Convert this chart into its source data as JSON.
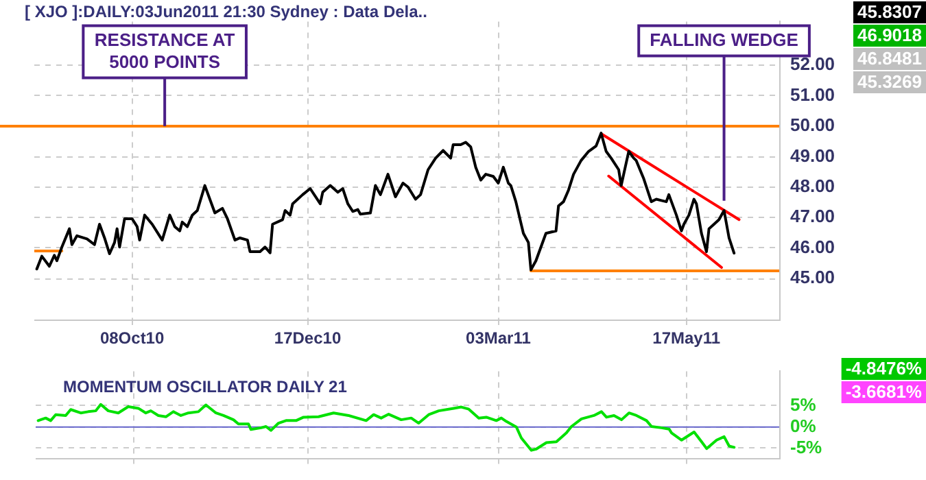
{
  "chart_data": [
    {
      "type": "line",
      "title": "[ XJO ]:DAILY:03Jun2011 21:30 Sydney : Data Dela..",
      "grid": true,
      "xlim": [
        "2010-08-30",
        "2011-06-23"
      ],
      "xticks": [
        {
          "value": "2010-10-08",
          "label": "08Oct10"
        },
        {
          "value": "2010-12-17",
          "label": "17Dec10"
        },
        {
          "value": "2011-03-03",
          "label": "03Mar11"
        },
        {
          "value": "2011-05-17",
          "label": "17May11"
        }
      ],
      "ylim": [
        43.65,
        53.43
      ],
      "yticks": [
        {
          "value": 45,
          "label": "45.00"
        },
        {
          "value": 46,
          "label": "46.00"
        },
        {
          "value": 47,
          "label": "47.00"
        },
        {
          "value": 48,
          "label": "48.00"
        },
        {
          "value": 49,
          "label": "49.00"
        },
        {
          "value": 50,
          "label": "50.00"
        },
        {
          "value": 51,
          "label": "51.00"
        },
        {
          "value": 52,
          "label": "52.00"
        }
      ],
      "ref_lines": [
        {
          "axis": "y",
          "value": 50,
          "color": "#ff8000"
        }
      ],
      "annotations": [
        "45.8307",
        "46.9018",
        "46.8481",
        "45.3269",
        {
          "text": "RESISTANCE AT 5000 POINTS",
          "x": "2010-10-21",
          "y": 50
        },
        {
          "text": "FALLING WEDGE",
          "x": "2011-06-01",
          "y": 47.55
        }
      ],
      "series": [
        {
          "type": "line",
          "color": "#000000",
          "x": [
            "2010-08-31",
            "2010-09-02",
            "2010-09-05",
            "2010-09-07",
            "2010-09-08",
            "2010-09-10",
            "2010-09-13",
            "2010-09-14",
            "2010-09-16",
            "2010-09-20",
            "2010-09-23",
            "2010-09-25",
            "2010-09-27",
            "2010-09-29",
            "2010-10-01",
            "2010-10-02",
            "2010-10-03",
            "2010-10-05",
            "2010-10-08",
            "2010-10-10",
            "2010-10-11",
            "2010-10-13",
            "2010-10-16",
            "2010-10-20",
            "2010-10-23",
            "2010-10-25",
            "2010-10-27",
            "2010-10-28",
            "2010-10-30",
            "2010-11-01",
            "2010-11-03",
            "2010-11-06",
            "2010-11-10",
            "2010-11-13",
            "2010-11-15",
            "2010-11-18",
            "2010-11-20",
            "2010-11-23",
            "2010-11-24",
            "2010-11-28",
            "2010-11-30",
            "2010-12-02",
            "2010-12-03",
            "2010-12-07",
            "2010-12-08",
            "2010-12-10",
            "2010-12-11",
            "2010-12-15",
            "2010-12-18",
            "2010-12-22",
            "2010-12-23",
            "2010-12-26",
            "2010-12-29",
            "2010-12-31",
            "2011-01-02",
            "2011-01-04",
            "2011-01-06",
            "2011-01-07",
            "2011-01-11",
            "2011-01-13",
            "2011-01-15",
            "2011-01-16",
            "2011-01-18",
            "2011-01-21",
            "2011-01-24",
            "2011-01-26",
            "2011-01-29",
            "2011-01-31",
            "2011-02-03",
            "2011-02-06",
            "2011-02-09",
            "2011-02-12",
            "2011-02-13",
            "2011-02-16",
            "2011-02-18",
            "2011-02-20",
            "2011-02-22",
            "2011-02-24",
            "2011-02-26",
            "2011-03-01",
            "2011-03-03",
            "2011-03-05",
            "2011-03-07",
            "2011-03-08",
            "2011-03-10",
            "2011-03-13",
            "2011-03-15",
            "2011-03-16",
            "2011-03-18",
            "2011-03-20",
            "2011-03-22",
            "2011-03-26",
            "2011-03-27",
            "2011-03-29",
            "2011-03-31",
            "2011-04-02",
            "2011-04-05",
            "2011-04-08",
            "2011-04-11",
            "2011-04-13",
            "2011-04-15",
            "2011-04-17",
            "2011-04-20",
            "2011-04-21",
            "2011-04-24",
            "2011-04-26",
            "2011-04-27",
            "2011-04-30",
            "2011-05-03",
            "2011-05-05",
            "2011-05-07",
            "2011-05-09",
            "2011-05-10",
            "2011-05-13",
            "2011-05-15",
            "2011-05-16",
            "2011-05-18",
            "2011-05-20",
            "2011-05-21",
            "2011-05-23",
            "2011-05-25",
            "2011-05-26",
            "2011-05-28",
            "2011-05-30",
            "2011-06-01",
            "2011-06-03",
            "2011-06-05"
          ],
          "values": [
            45.31,
            45.73,
            45.4,
            45.76,
            45.58,
            46.03,
            46.63,
            46.11,
            46.4,
            46.3,
            46.11,
            46.78,
            46.33,
            45.81,
            46.18,
            46.63,
            46.03,
            46.96,
            46.96,
            46.7,
            46.26,
            47.08,
            46.78,
            46.26,
            47.08,
            46.7,
            46.56,
            46.85,
            46.7,
            47.08,
            47.23,
            48.05,
            47.15,
            47.3,
            46.96,
            46.26,
            46.33,
            46.26,
            45.88,
            45.88,
            46.03,
            45.84,
            46.78,
            46.93,
            47.23,
            47.08,
            47.45,
            47.75,
            47.95,
            47.45,
            47.83,
            48.05,
            47.83,
            47.95,
            47.45,
            47.2,
            47.26,
            47.11,
            47.15,
            48.05,
            47.75,
            47.97,
            48.42,
            47.68,
            48.13,
            48.0,
            47.6,
            47.75,
            48.57,
            48.95,
            49.2,
            48.95,
            49.39,
            49.39,
            49.47,
            49.32,
            48.65,
            48.23,
            48.42,
            48.35,
            48.13,
            48.65,
            48.13,
            48.05,
            47.52,
            46.48,
            46.18,
            45.28,
            45.58,
            46.03,
            46.48,
            46.56,
            47.38,
            47.52,
            47.9,
            48.42,
            48.87,
            49.17,
            49.35,
            49.77,
            49.17,
            48.95,
            48.57,
            48.05,
            49.17,
            48.95,
            48.87,
            48.27,
            47.52,
            47.6,
            47.56,
            47.52,
            47.75,
            47.08,
            46.56,
            46.78,
            47.08,
            47.6,
            47.45,
            46.48,
            45.88,
            46.63,
            46.78,
            46.93,
            47.23,
            46.33,
            45.83
          ]
        },
        {
          "type": "line",
          "color": "#ff0000",
          "x": [
            "2011-04-13",
            "2011-06-07"
          ],
          "values": [
            49.75,
            46.93
          ]
        },
        {
          "type": "line",
          "color": "#ff0000",
          "x": [
            "2011-04-16",
            "2011-05-31"
          ],
          "values": [
            48.36,
            45.36
          ]
        },
        {
          "type": "line",
          "color": "#ff8000",
          "x": [
            "2011-03-16",
            "2011-06-23"
          ],
          "values": [
            45.25,
            45.25
          ]
        },
        {
          "type": "line",
          "color": "#ff8000",
          "x": [
            "2010-08-30",
            "2010-09-10"
          ],
          "values": [
            45.9,
            45.9
          ]
        }
      ]
    },
    {
      "type": "line",
      "title": "MOMENTUM OSCILLATOR DAILY 21",
      "grid": true,
      "tick_labels": "y",
      "xlim": [
        "2010-08-30",
        "2011-06-23"
      ],
      "xticks": [
        {
          "value": "2010-10-08",
          "label": null
        },
        {
          "value": "2010-12-17",
          "label": null
        },
        {
          "value": "2011-03-03",
          "label": null
        },
        {
          "value": "2011-05-17",
          "label": null
        }
      ],
      "ylim": [
        -7.4,
        13.1
      ],
      "yticks": [
        {
          "value": 5,
          "label": "5%"
        },
        {
          "value": 0,
          "label": "0%"
        },
        {
          "value": -5,
          "label": "-5%"
        }
      ],
      "ref_lines": [
        {
          "axis": "y",
          "value": 0,
          "color": "#6666cc"
        }
      ],
      "annotations": [
        "-4.8476%",
        "-3.6681%"
      ],
      "series": [
        {
          "type": "line",
          "color": "#00e000",
          "x": [
            "2010-08-31",
            "2010-09-03",
            "2010-09-05",
            "2010-09-07",
            "2010-09-11",
            "2010-09-13",
            "2010-09-17",
            "2010-09-20",
            "2010-09-23",
            "2010-09-25",
            "2010-09-28",
            "2010-10-02",
            "2010-10-06",
            "2010-10-10",
            "2010-10-13",
            "2010-10-15",
            "2010-10-18",
            "2010-10-21",
            "2010-10-24",
            "2010-10-27",
            "2010-10-30",
            "2010-11-03",
            "2010-11-06",
            "2010-11-10",
            "2010-11-13",
            "2010-11-17",
            "2010-11-19",
            "2010-11-23",
            "2010-11-24",
            "2010-11-28",
            "2010-11-30",
            "2010-12-02",
            "2010-12-05",
            "2010-12-08",
            "2010-12-12",
            "2010-12-15",
            "2010-12-21",
            "2010-12-27",
            "2011-01-02",
            "2011-01-09",
            "2011-01-12",
            "2011-01-15",
            "2011-01-18",
            "2011-01-23",
            "2011-01-27",
            "2011-01-30",
            "2011-02-03",
            "2011-02-07",
            "2011-02-13",
            "2011-02-16",
            "2011-02-19",
            "2011-02-23",
            "2011-02-26",
            "2011-03-02",
            "2011-03-04",
            "2011-03-06",
            "2011-03-10",
            "2011-03-12",
            "2011-03-16",
            "2011-03-18",
            "2011-03-22",
            "2011-03-26",
            "2011-03-30",
            "2011-04-01",
            "2011-04-05",
            "2011-04-10",
            "2011-04-13",
            "2011-04-15",
            "2011-04-18",
            "2011-04-21",
            "2011-04-24",
            "2011-04-27",
            "2011-05-01",
            "2011-05-03",
            "2011-05-07",
            "2011-05-10",
            "2011-05-11",
            "2011-05-15",
            "2011-05-20",
            "2011-05-23",
            "2011-05-25",
            "2011-05-29",
            "2011-06-01",
            "2011-06-03",
            "2011-06-05"
          ],
          "values": [
            1.5,
            2.1,
            1.5,
            2.9,
            2.7,
            4.1,
            3.3,
            3.6,
            3.8,
            5.3,
            3.8,
            3.3,
            4.8,
            4.4,
            3.3,
            3.8,
            2.7,
            2.4,
            3.6,
            2.7,
            3.3,
            3.6,
            5.2,
            3.3,
            2.7,
            1.7,
            0.7,
            0.7,
            -0.6,
            -0.2,
            0.1,
            -0.8,
            0.9,
            1.5,
            1.5,
            2.3,
            2.4,
            3.3,
            2.7,
            1.5,
            2.9,
            2.1,
            3.0,
            1.7,
            2.1,
            0.9,
            2.9,
            3.8,
            4.4,
            4.7,
            4.2,
            2.1,
            2.3,
            1.5,
            2.1,
            1.3,
            0,
            -2.6,
            -5.5,
            -5.2,
            -3.7,
            -3.5,
            -1.4,
            0.1,
            1.9,
            2.7,
            3.6,
            2.3,
            2.7,
            1.7,
            3.3,
            2.7,
            1.5,
            0.1,
            -0.2,
            -0.5,
            -1.4,
            -3.1,
            -1.2,
            -3.5,
            -5.1,
            -3.1,
            -2.3,
            -4.5,
            -4.8
          ]
        }
      ]
    }
  ]
}
